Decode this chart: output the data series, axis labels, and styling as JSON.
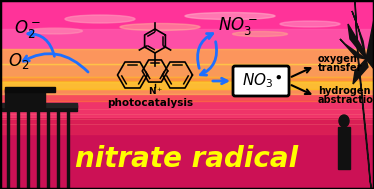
{
  "title": "nitrate radical",
  "title_color": "#ffff00",
  "title_fontsize": 20,
  "title_style": "italic",
  "title_weight": "bold",
  "arrow_color": "#1e6fff",
  "figsize": [
    3.74,
    1.89
  ],
  "dpi": 100,
  "sky_bands": [
    [
      0,
      160,
      374,
      29,
      "#ff3399",
      1.0
    ],
    [
      0,
      140,
      374,
      20,
      "#ff55aa",
      0.9
    ],
    [
      0,
      125,
      374,
      15,
      "#ffaa55",
      0.85
    ],
    [
      0,
      112,
      374,
      13,
      "#ffcc44",
      0.7
    ],
    [
      0,
      100,
      374,
      12,
      "#ffaa33",
      0.8
    ],
    [
      0,
      88,
      374,
      12,
      "#ff7733",
      0.5
    ]
  ],
  "water_bands": [
    [
      0,
      0,
      374,
      88,
      "#cc1155",
      1.0
    ],
    [
      0,
      55,
      374,
      33,
      "#dd2255",
      0.8
    ],
    [
      0,
      72,
      374,
      16,
      "#ff4477",
      0.6
    ]
  ],
  "cloud_ellipses": [
    [
      100,
      170,
      70,
      8,
      "#ff99bb",
      0.6
    ],
    [
      230,
      173,
      90,
      7,
      "#ffbbcc",
      0.5
    ],
    [
      55,
      158,
      55,
      6,
      "#ffaabb",
      0.4
    ],
    [
      160,
      162,
      80,
      7,
      "#ffbb99",
      0.45
    ],
    [
      310,
      165,
      60,
      6,
      "#ffaacc",
      0.45
    ],
    [
      260,
      155,
      55,
      5,
      "#ffbb88",
      0.4
    ]
  ]
}
